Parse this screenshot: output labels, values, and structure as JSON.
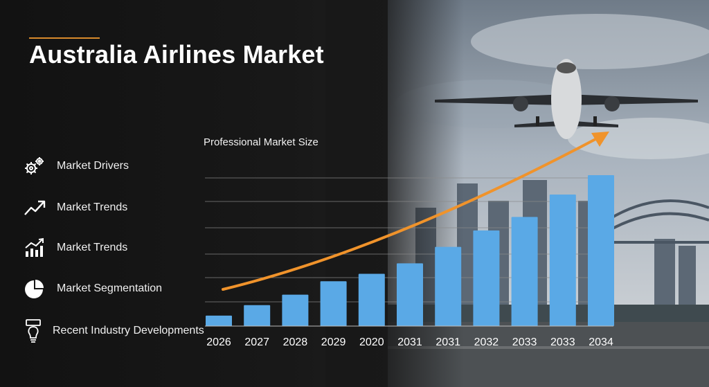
{
  "page": {
    "title": "Australia Airlines Market"
  },
  "sidebar": {
    "items": [
      {
        "label": "Market Drivers",
        "icon": "gears-icon"
      },
      {
        "label": "Market Trends",
        "icon": "trend-arrow-icon"
      },
      {
        "label": "Market Trends",
        "icon": "bar-growth-icon"
      },
      {
        "label": "Market Segmentation",
        "icon": "pie-chart-icon"
      },
      {
        "label": "Recent Industry Developments",
        "icon": "lightbulb-icon"
      }
    ]
  },
  "colors": {
    "bar": "#5aa9e6",
    "trend_arrow": "#f0932b",
    "accent": "#d98a2b",
    "gridline": "#8a8a8a"
  },
  "chart_data": {
    "type": "bar",
    "title": "Professional Market Size",
    "categories": [
      "2026",
      "2027",
      "2028",
      "2029",
      "2020",
      "2031",
      "2031",
      "2032",
      "2033",
      "2033",
      "2034"
    ],
    "values": [
      7,
      14,
      21,
      30,
      35,
      42,
      53,
      64,
      73,
      88,
      101
    ],
    "ylim": [
      0,
      101
    ],
    "grid": true,
    "trend_arrow": true
  }
}
